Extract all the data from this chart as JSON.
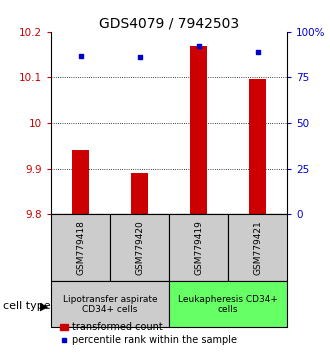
{
  "title": "GDS4079 / 7942503",
  "samples": [
    "GSM779418",
    "GSM779420",
    "GSM779419",
    "GSM779421"
  ],
  "transformed_counts": [
    9.94,
    9.89,
    10.17,
    10.097
  ],
  "percentile_ranks": [
    87,
    86,
    92,
    89
  ],
  "ylim_left": [
    9.8,
    10.2
  ],
  "ylim_right": [
    0,
    100
  ],
  "yticks_left": [
    9.8,
    9.9,
    10.0,
    10.1,
    10.2
  ],
  "yticks_right": [
    0,
    25,
    50,
    75,
    100
  ],
  "ytick_labels_left": [
    "9.8",
    "9.9",
    "10",
    "10.1",
    "10.2"
  ],
  "ytick_labels_right": [
    "0",
    "25",
    "50",
    "75",
    "100%"
  ],
  "bar_color": "#cc0000",
  "dot_color": "#0000cc",
  "bar_bottom": 9.8,
  "group1_label": "Lipotransfer aspirate\nCD34+ cells",
  "group2_label": "Leukapheresis CD34+\ncells",
  "group1_bg": "#cccccc",
  "group2_bg": "#66ff66",
  "sample_box_bg": "#cccccc",
  "cell_type_label": "cell type",
  "legend_bar_label": "transformed count",
  "legend_dot_label": "percentile rank within the sample",
  "title_fontsize": 10,
  "tick_fontsize": 7.5,
  "legend_fontsize": 7,
  "sample_fontsize": 6.5,
  "group_label_fontsize": 6.5,
  "cell_type_fontsize": 8,
  "xlabel_color_left": "#cc0000",
  "xlabel_color_right": "#0000cc",
  "gridline_ticks": [
    9.9,
    10.0,
    10.1
  ]
}
